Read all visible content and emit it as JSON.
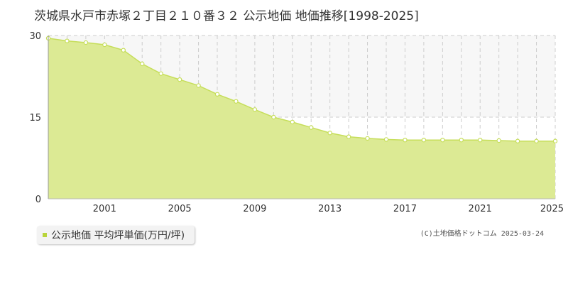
{
  "title": "茨城県水戸市赤塚２丁目２１０番３２ 公示地価 地価推移[1998-2025]",
  "legend": {
    "label": "公示地価 平均坪単価(万円/坪)",
    "color": "#b8d43a"
  },
  "copyright": "(C)土地価格ドットコム 2025-03-24",
  "colors": {
    "fill": "#dcea94",
    "line": "#c6de5a",
    "marker_fill": "#ffffff",
    "marker_stroke": "#c6de5a",
    "grid": "#cccccc",
    "axis_text": "#333333",
    "upper_band": "#f7f7f7"
  },
  "chart_data": {
    "type": "area",
    "title": "",
    "xlabel": "",
    "ylabel": "",
    "x": [
      1998,
      1999,
      2000,
      2001,
      2002,
      2003,
      2004,
      2005,
      2006,
      2007,
      2008,
      2009,
      2010,
      2011,
      2012,
      2013,
      2014,
      2015,
      2016,
      2017,
      2018,
      2019,
      2020,
      2021,
      2022,
      2023,
      2024,
      2025
    ],
    "series": [
      {
        "name": "公示地価 平均坪単価(万円/坪)",
        "values": [
          29.5,
          29.0,
          28.7,
          28.3,
          27.3,
          24.8,
          23.0,
          21.9,
          20.8,
          19.2,
          17.9,
          16.4,
          15.0,
          14.1,
          13.1,
          12.1,
          11.4,
          11.1,
          10.9,
          10.8,
          10.8,
          10.8,
          10.8,
          10.8,
          10.7,
          10.6,
          10.6,
          10.6
        ]
      }
    ],
    "xlim": [
      1998,
      2025
    ],
    "ylim": [
      0,
      30
    ],
    "yticks": [
      0,
      15,
      30
    ],
    "xticks": [
      2001,
      2005,
      2009,
      2013,
      2017,
      2021,
      2025
    ],
    "grid": true,
    "legend_position": "bottom-left"
  }
}
